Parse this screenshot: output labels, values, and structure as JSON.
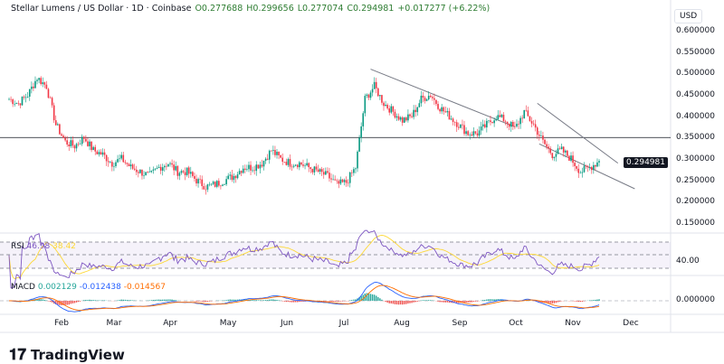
{
  "header": {
    "symbol": "Stellar Lumens / US Dollar · 1D · Coinbase",
    "open": "O0.277688",
    "high": "H0.299656",
    "low": "L0.277074",
    "close": "C0.294981",
    "change": "+0.017277 (+6.22%)"
  },
  "currency": "USD",
  "price_axis": [
    "0.600000",
    "0.550000",
    "0.500000",
    "0.450000",
    "0.400000",
    "0.350000",
    "0.300000",
    "0.250000",
    "0.200000",
    "0.150000"
  ],
  "last_price": "0.294981",
  "rsi": {
    "label": "RSI",
    "value": "46.98",
    "ma": "38.42",
    "axis": "40.00"
  },
  "macd": {
    "label": "MACD",
    "hist": "0.002129",
    "macd": "-0.012438",
    "signal": "-0.014567",
    "axis": "0.000000"
  },
  "months": [
    "Feb",
    "Mar",
    "Apr",
    "May",
    "Jun",
    "Jul",
    "Aug",
    "Sep",
    "Oct",
    "Nov",
    "Dec"
  ],
  "brand": "TradingView",
  "colors": {
    "up": "#089981",
    "down": "#f23645",
    "rsi": "#7e57c2",
    "rsi_ma": "#fdd835",
    "macd": "#2962ff",
    "signal": "#ff6d00"
  },
  "chart_data": {
    "type": "candlestick",
    "step_days": 5,
    "start": "Jan 4",
    "closes": [
      0.44,
      0.43,
      0.45,
      0.49,
      0.47,
      0.38,
      0.34,
      0.33,
      0.35,
      0.32,
      0.31,
      0.29,
      0.3,
      0.28,
      0.27,
      0.26,
      0.28,
      0.29,
      0.27,
      0.27,
      0.25,
      0.235,
      0.24,
      0.25,
      0.26,
      0.28,
      0.28,
      0.29,
      0.32,
      0.3,
      0.29,
      0.29,
      0.28,
      0.27,
      0.26,
      0.24,
      0.245,
      0.28,
      0.44,
      0.47,
      0.43,
      0.41,
      0.39,
      0.4,
      0.44,
      0.45,
      0.42,
      0.4,
      0.38,
      0.36,
      0.36,
      0.38,
      0.4,
      0.39,
      0.37,
      0.41,
      0.38,
      0.34,
      0.31,
      0.32,
      0.3,
      0.27,
      0.28,
      0.295
    ],
    "horizontal_level": 0.35,
    "trendlines": [
      {
        "from": [
          193,
          0.51
        ],
        "to": [
          270,
          0.375
        ]
      },
      {
        "from": [
          282,
          0.43
        ],
        "to": [
          325,
          0.29
        ]
      },
      {
        "from": [
          283,
          0.335
        ],
        "to": [
          334,
          0.23
        ]
      }
    ],
    "ylim": [
      0.15,
      0.6
    ]
  }
}
